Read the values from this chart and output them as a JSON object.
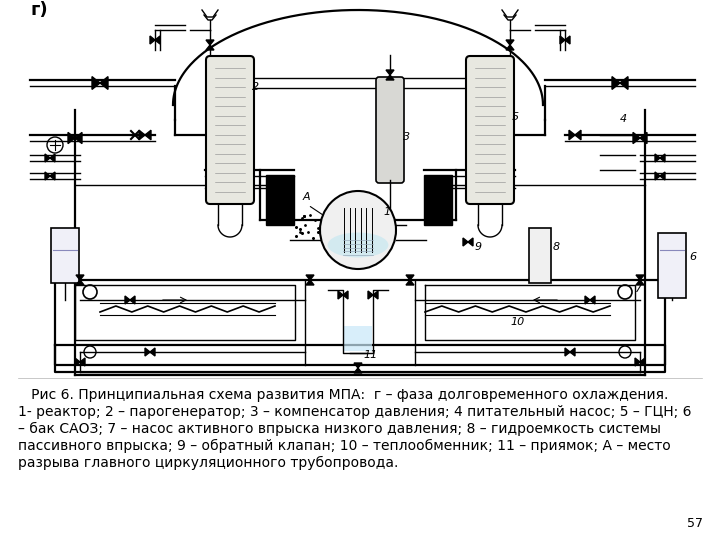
{
  "background_color": "#ffffff",
  "diagram_label": "г)",
  "caption_line1": "   Рис 6. Принципиальная схема развития МПА:  г – фаза долговременного охлаждения.",
  "caption_line2": "1- реактор; 2 – парогенератор; 3 – компенсатор давления; 4 питательный насос; 5 – ГЦН; 6",
  "caption_line3": "– бак САОЗ; 7 – насос активного впрыска низкого давления; 8 – гидроемкость системы",
  "caption_line4": "пассивного впрыска; 9 – обратный клапан; 10 – теплообменник; 11 – приямок; А – место",
  "caption_line5": "разрыва главного циркуляционного трубопровода.",
  "page_number": "57",
  "font_size_caption": 10.0,
  "font_size_page": 9
}
